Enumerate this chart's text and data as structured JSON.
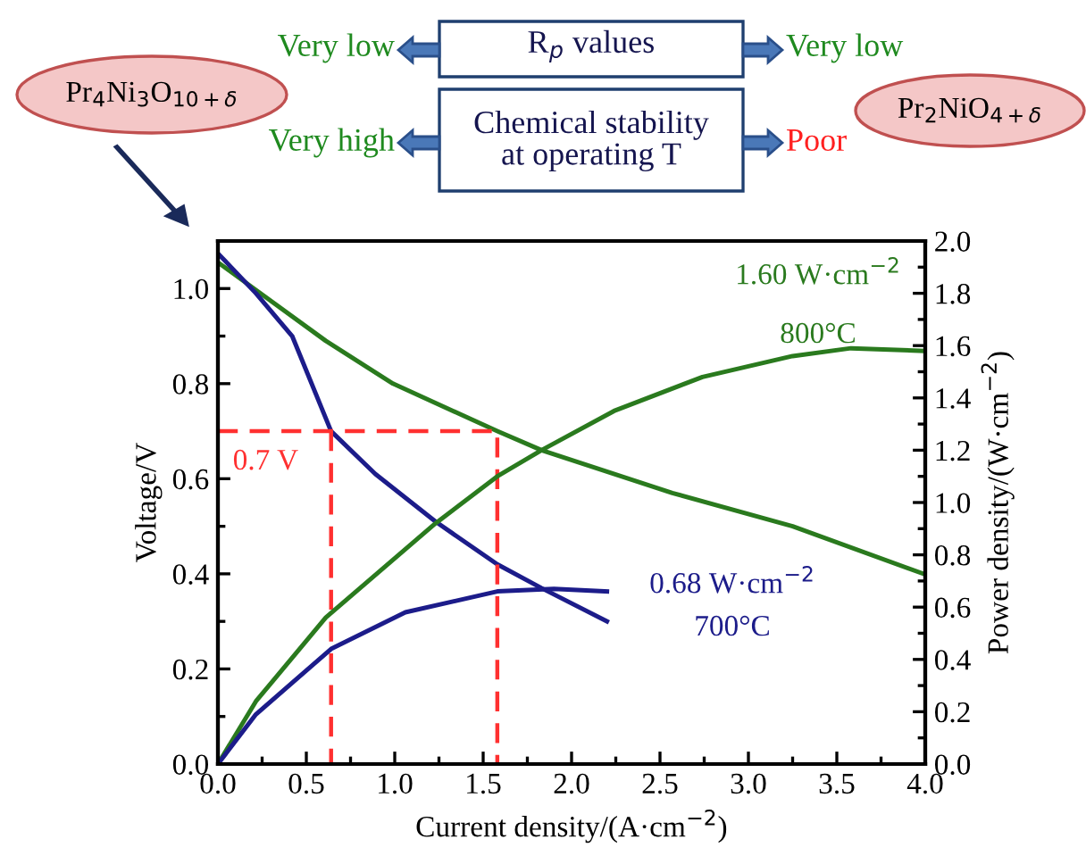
{
  "chart_data": {
    "type": "line",
    "xlabel": "Current density/(A·cm$^{−2}$)",
    "ylabel": "Voltage/V",
    "y2label": "Power density/(W·cm$^{−2}$)",
    "xlim": [
      0,
      4
    ],
    "xticks": [
      {
        "value": 0,
        "label": "0.0"
      },
      0.5,
      {
        "value": 1,
        "label": "1.0"
      },
      1.5,
      {
        "value": 2,
        "label": "2.0"
      },
      2.5,
      {
        "value": 3,
        "label": "3.0"
      },
      3.5,
      {
        "value": 4,
        "label": "4.0"
      }
    ],
    "ylim": [
      0,
      1.1
    ],
    "yticks": [
      {
        "value": 0,
        "label": "0.0"
      },
      0.2,
      0.4,
      0.6,
      0.8,
      {
        "value": 1,
        "label": "1.0"
      }
    ],
    "y2lim": [
      0,
      2
    ],
    "y2ticks": [
      {
        "value": 0,
        "label": "0.0"
      },
      0.2,
      0.4,
      0.6,
      0.8,
      {
        "value": 1,
        "label": "1.0"
      },
      1.2,
      1.4,
      1.6,
      1.8,
      {
        "value": 2,
        "label": "2.0"
      }
    ],
    "grid": false,
    "marker": "none",
    "series": [
      {
        "color": "#2a7a1e",
        "x": [
          0,
          0.61,
          0.99,
          1.58,
          1.83,
          2.57,
          3.25,
          3.99
        ],
        "values": [
          1.055,
          0.89,
          0.8,
          0.7,
          0.66,
          0.57,
          0.5,
          0.4
        ]
      },
      {
        "color": "#2a7a1e",
        "axis": "y2",
        "x": [
          0,
          0.215,
          0.61,
          1.23,
          1.58,
          1.83,
          2.24,
          2.74,
          3.25,
          3.58,
          3.99
        ],
        "values": [
          0,
          0.24,
          0.56,
          0.92,
          1.1,
          1.2,
          1.35,
          1.48,
          1.56,
          1.59,
          1.58
        ]
      },
      {
        "color": "#1c1c8a",
        "x": [
          0,
          0.215,
          0.42,
          0.64,
          0.89,
          1.23,
          1.58,
          1.83,
          2.2
        ],
        "values": [
          1.074,
          0.99,
          0.9,
          0.7,
          0.61,
          0.51,
          0.42,
          0.37,
          0.3
        ]
      },
      {
        "color": "#1c1c8a",
        "axis": "y2",
        "x": [
          0,
          0.215,
          0.64,
          1.06,
          1.58,
          1.9,
          2.2
        ],
        "values": [
          0,
          0.19,
          0.44,
          0.58,
          0.66,
          0.67,
          0.66
        ]
      },
      {
        "color": "#ff3030",
        "line_style": "dashed",
        "x": [
          0,
          1.58,
          1.58
        ],
        "values": [
          0.7,
          0.7,
          0
        ]
      },
      {
        "color": "#ff3030",
        "line_style": "dashed",
        "x": [
          0.64,
          0.64
        ],
        "values": [
          0.7,
          0
        ]
      }
    ],
    "annotations": [
      {
        "text": "0.7 V",
        "x": 0,
        "y": 0.7
      },
      "1.60 W·cm$^{−2}$",
      "800°C",
      "0.68 W·cm$^{−2}$",
      "700°C",
      "Very low",
      "R$_{p}$ values",
      "Very low",
      "Pr$_{4}$Ni$_{3}$O$_{10+δ}$",
      "Chemical stability\nat operating T",
      "Very high",
      "Poor",
      "Pr$_{2}$NiO$_{4+δ}$"
    ]
  }
}
